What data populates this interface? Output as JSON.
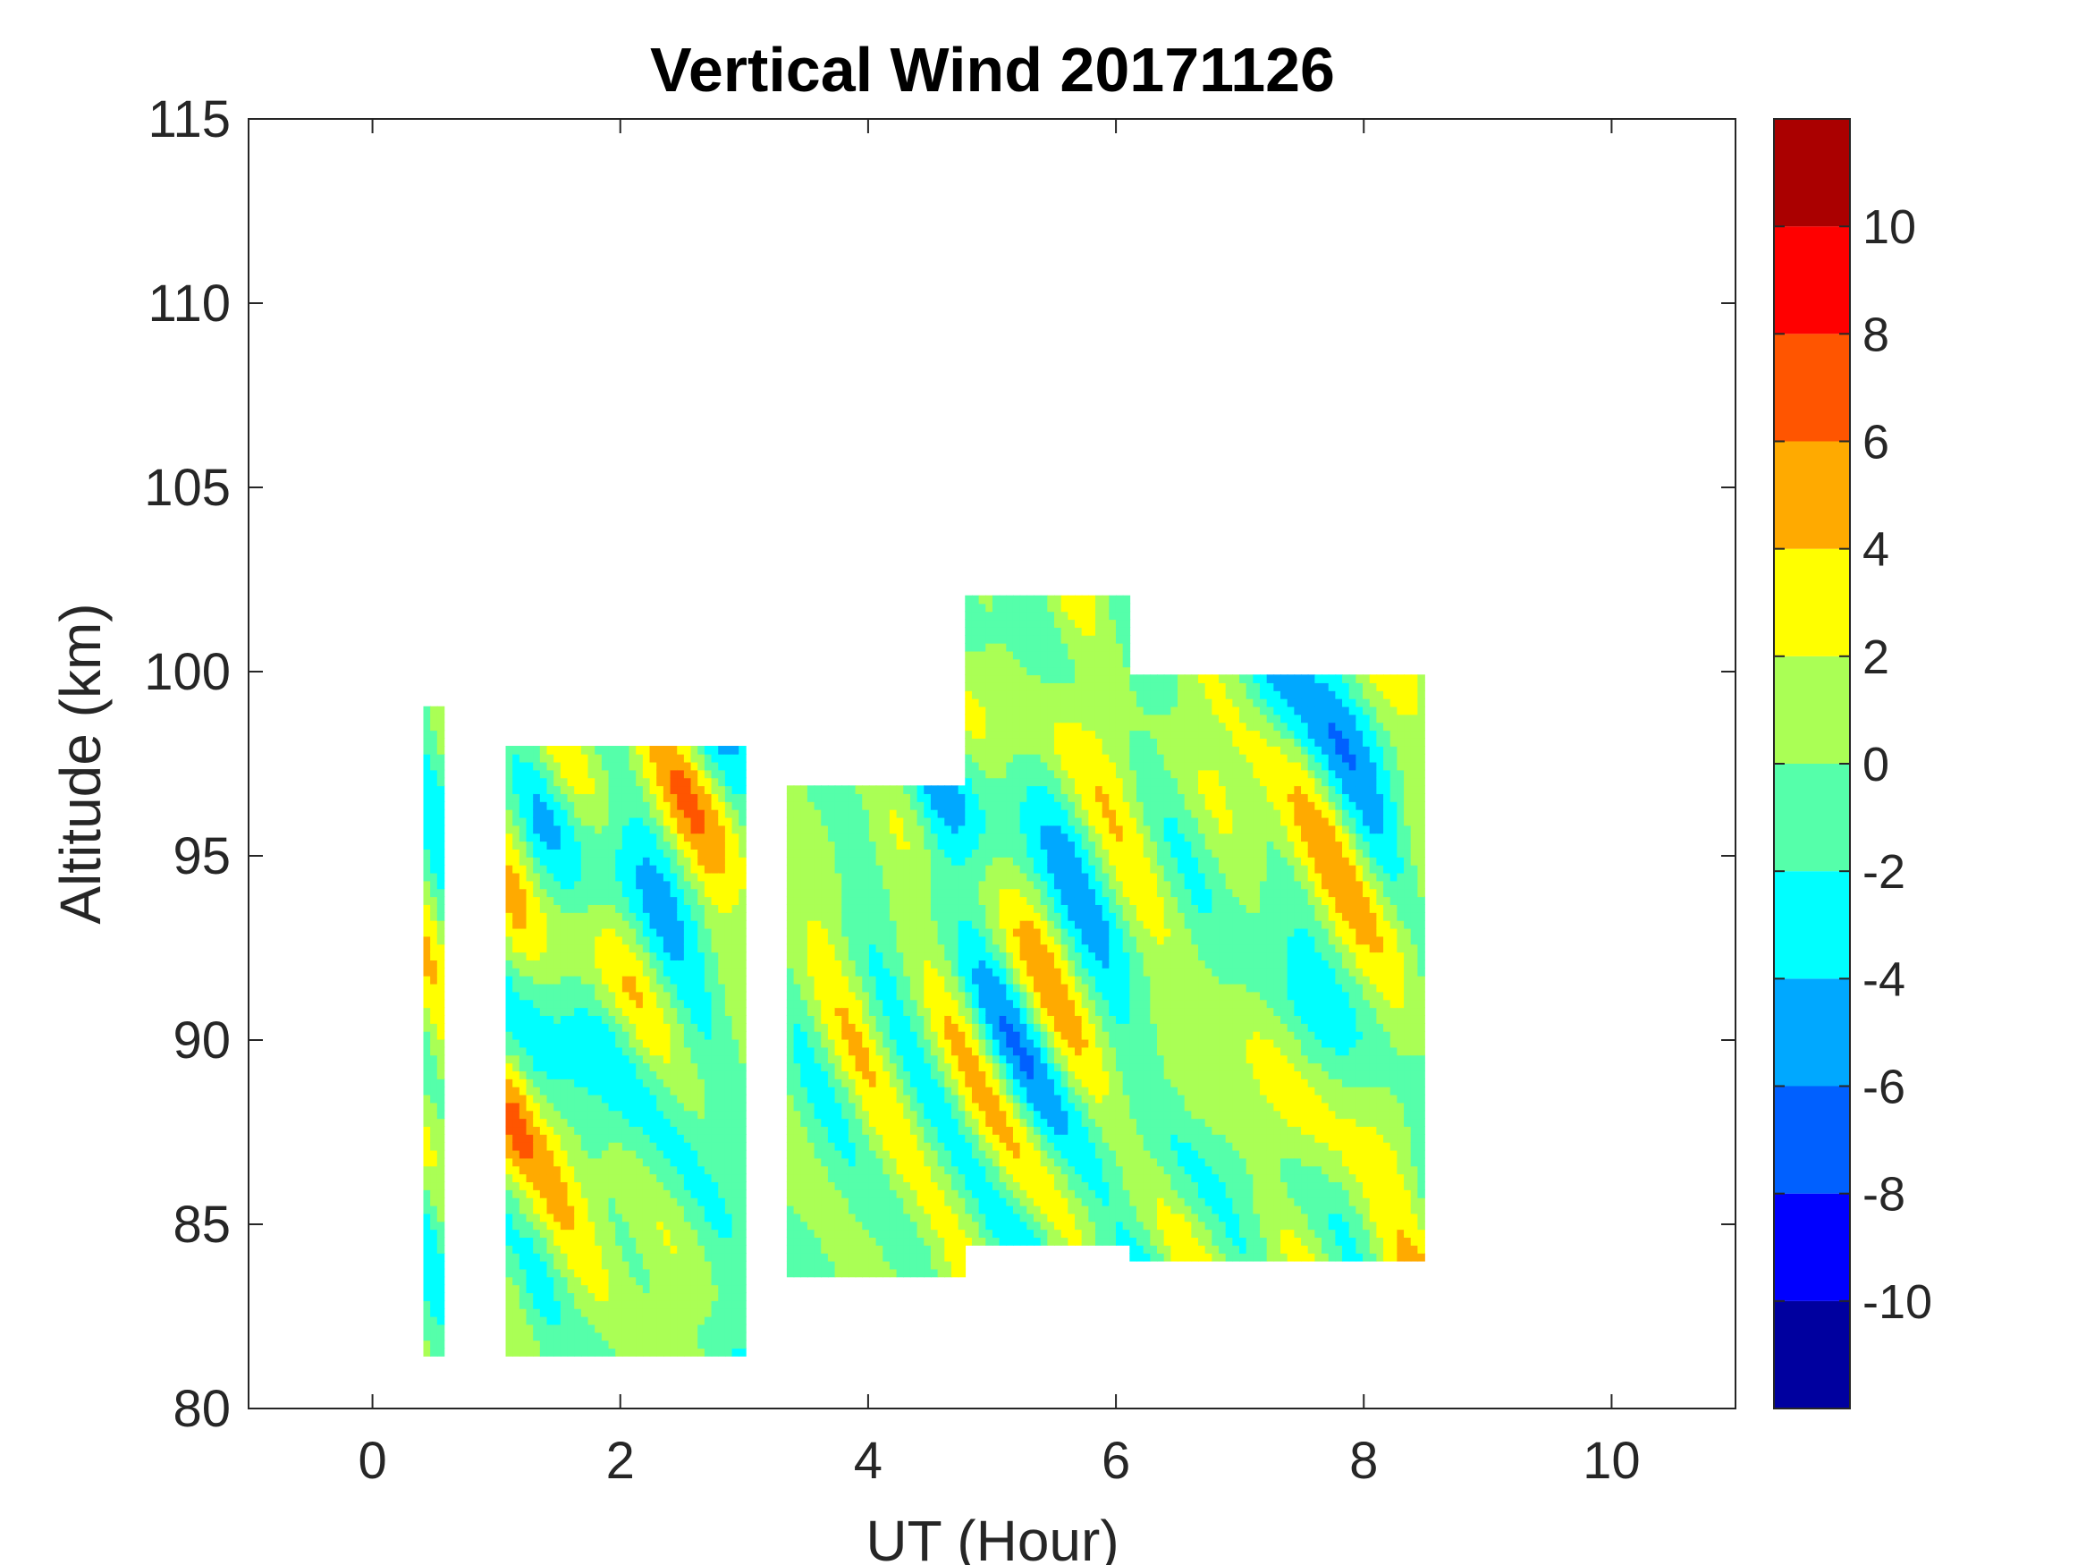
{
  "chart_data": {
    "type": "heatmap",
    "title": "Vertical Wind 20171126",
    "xlabel": "UT (Hour)",
    "ylabel": "Altitude (km)",
    "xlim": [
      -1,
      11
    ],
    "ylim": [
      80,
      115
    ],
    "xticks": [
      0,
      2,
      4,
      6,
      8,
      10
    ],
    "yticks": [
      80,
      85,
      90,
      95,
      100,
      105,
      110,
      115
    ],
    "grid": false,
    "colorbar": {
      "location": "right",
      "range": [
        -12,
        12
      ],
      "ticks": [
        -10,
        -8,
        -6,
        -4,
        -2,
        0,
        2,
        4,
        6,
        8,
        10
      ],
      "levels": [
        {
          "from": -12,
          "to": -10,
          "color": "#00009f"
        },
        {
          "from": -10,
          "to": -8,
          "color": "#0000ff"
        },
        {
          "from": -8,
          "to": -6,
          "color": "#0060ff"
        },
        {
          "from": -6,
          "to": -4,
          "color": "#00a8ff"
        },
        {
          "from": -4,
          "to": -2,
          "color": "#00ffff"
        },
        {
          "from": -2,
          "to": 0,
          "color": "#55ffaa"
        },
        {
          "from": 0,
          "to": 2,
          "color": "#aaff55"
        },
        {
          "from": 2,
          "to": 4,
          "color": "#ffff00"
        },
        {
          "from": 4,
          "to": 6,
          "color": "#ffaa00"
        },
        {
          "from": 6,
          "to": 8,
          "color": "#ff5500"
        },
        {
          "from": 8,
          "to": 10,
          "color": "#ff0000"
        },
        {
          "from": 10,
          "to": 12,
          "color": "#aa0000"
        }
      ]
    },
    "data_blocks": [
      {
        "ut": [
          0.4,
          0.6
        ],
        "altitude": [
          81.5,
          99.0
        ]
      },
      {
        "ut": [
          1.1,
          3.0
        ],
        "altitude": [
          81.5,
          98.0
        ]
      },
      {
        "ut": [
          3.35,
          4.8
        ],
        "altitude": [
          83.5,
          97.0
        ]
      },
      {
        "ut": [
          4.8,
          6.1
        ],
        "altitude": [
          84.5,
          102.0
        ]
      },
      {
        "ut": [
          6.1,
          8.5
        ],
        "altitude": [
          84.0,
          100.0
        ]
      }
    ]
  }
}
